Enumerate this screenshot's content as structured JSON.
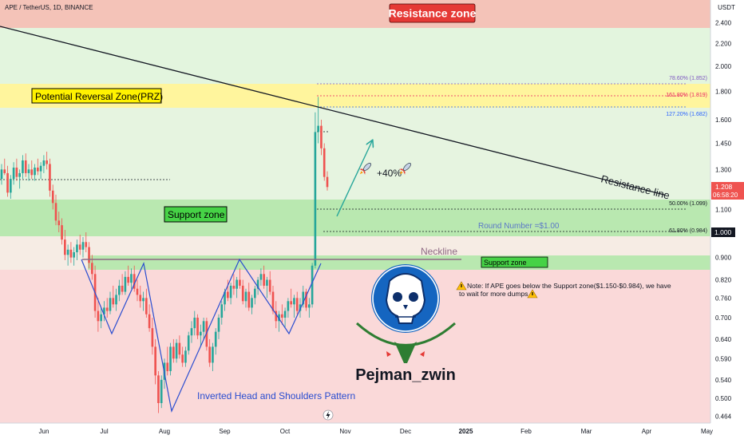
{
  "header": {
    "symbol_line": "APE / TetherUS, 1D, BINANCE"
  },
  "price_axis": {
    "unit_label": "USDT",
    "ticks": [
      "2.400",
      "2.200",
      "2.000",
      "1.800",
      "1.600",
      "1.450",
      "1.300",
      "1.100",
      "1.000",
      "0.900",
      "0.820",
      "0.760",
      "0.700",
      "0.640",
      "0.590",
      "0.540",
      "0.500",
      "0.464"
    ],
    "last_price": "1.208",
    "countdown": "06:58:20",
    "marker_price": "1.000"
  },
  "time_axis": {
    "labels": [
      "Jun",
      "Jul",
      "Aug",
      "Sep",
      "Oct",
      "Nov",
      "Dec",
      "2025",
      "Feb",
      "Mar",
      "Apr",
      "May"
    ]
  },
  "zones": {
    "resistance_label": "Resistance zone",
    "prz_label": "Potential Reversal Zone(PRZ)",
    "support_label": "Support zone",
    "support_small_label": "Support zone"
  },
  "fib_levels": [
    {
      "text": "78.60% (1.852)",
      "color": "#7e57c2"
    },
    {
      "text": "161.80% (1.819)",
      "color": "#e91e63"
    },
    {
      "text": "127.20% (1.682)",
      "color": "#2962ff"
    },
    {
      "text": "50.00% (1.099)",
      "color": "#131722"
    },
    {
      "text": "61.80% (0.984)",
      "color": "#131722"
    }
  ],
  "annotations": {
    "resistance_line": "Resistance line",
    "neckline": "Neckline",
    "round_number": "Round Number =$1.00",
    "move_label": "+40%",
    "pattern": "Inverted Head and Shoulders Pattern",
    "note_line1": "Note: If APE goes below the Support zone($1.150-$0.984), we have",
    "note_line2": "to wait for more dumps",
    "author": "Pejman_zwin"
  },
  "colors": {
    "up": "#26a69a",
    "down": "#ef5350",
    "resistance_zone": "#f4c3b8",
    "prz_zone": "#fff59d",
    "support_zone": "#b9e8b0",
    "pattern_line": "#2a4dd0",
    "neckline": "#8e6a84"
  },
  "chart_data": {
    "type": "candlestick",
    "symbol": "APE / TetherUS",
    "timeframe": "1D",
    "exchange": "BINANCE",
    "y_scale": "log",
    "ylim": [
      0.464,
      2.65
    ],
    "x_labels": [
      "Jun",
      "Jul",
      "Aug",
      "Sep",
      "Oct",
      "Nov",
      "Dec",
      "2025",
      "Feb",
      "Mar",
      "Apr",
      "May"
    ],
    "series": [
      {
        "name": "APE / TetherUS",
        "candles": [
          [
            1.25,
            1.33,
            1.22,
            1.3
          ],
          [
            1.3,
            1.36,
            1.27,
            1.28
          ],
          [
            1.28,
            1.32,
            1.16,
            1.18
          ],
          [
            1.18,
            1.27,
            1.15,
            1.25
          ],
          [
            1.25,
            1.34,
            1.22,
            1.31
          ],
          [
            1.31,
            1.36,
            1.24,
            1.26
          ],
          [
            1.26,
            1.3,
            1.2,
            1.28
          ],
          [
            1.28,
            1.38,
            1.25,
            1.35
          ],
          [
            1.35,
            1.39,
            1.26,
            1.28
          ],
          [
            1.28,
            1.33,
            1.24,
            1.3
          ],
          [
            1.3,
            1.35,
            1.25,
            1.27
          ],
          [
            1.27,
            1.33,
            1.24,
            1.31
          ],
          [
            1.31,
            1.36,
            1.27,
            1.29
          ],
          [
            1.29,
            1.34,
            1.25,
            1.32
          ],
          [
            1.32,
            1.38,
            1.28,
            1.35
          ],
          [
            1.35,
            1.4,
            1.3,
            1.33
          ],
          [
            1.33,
            1.36,
            1.16,
            1.19
          ],
          [
            1.19,
            1.22,
            1.1,
            1.13
          ],
          [
            1.13,
            1.17,
            1.03,
            1.05
          ],
          [
            1.05,
            1.09,
            1.0,
            1.03
          ],
          [
            1.03,
            1.06,
            0.95,
            0.97
          ],
          [
            0.97,
            1.01,
            0.89,
            0.91
          ],
          [
            0.91,
            0.95,
            0.87,
            0.93
          ],
          [
            0.93,
            0.96,
            0.88,
            0.9
          ],
          [
            0.9,
            0.94,
            0.87,
            0.92
          ],
          [
            0.92,
            0.97,
            0.89,
            0.95
          ],
          [
            0.95,
            0.99,
            0.91,
            0.93
          ],
          [
            0.93,
            0.98,
            0.9,
            0.96
          ],
          [
            0.96,
            1.0,
            0.92,
            0.94
          ],
          [
            0.94,
            0.96,
            0.86,
            0.88
          ],
          [
            0.88,
            0.91,
            0.82,
            0.84
          ],
          [
            0.84,
            0.87,
            0.7,
            0.72
          ],
          [
            0.72,
            0.76,
            0.66,
            0.69
          ],
          [
            0.69,
            0.73,
            0.67,
            0.71
          ],
          [
            0.71,
            0.75,
            0.69,
            0.73
          ],
          [
            0.73,
            0.76,
            0.7,
            0.72
          ],
          [
            0.72,
            0.78,
            0.71,
            0.76
          ],
          [
            0.76,
            0.8,
            0.73,
            0.74
          ],
          [
            0.74,
            0.79,
            0.72,
            0.77
          ],
          [
            0.77,
            0.82,
            0.75,
            0.8
          ],
          [
            0.8,
            0.84,
            0.77,
            0.78
          ],
          [
            0.78,
            0.85,
            0.77,
            0.83
          ],
          [
            0.83,
            0.87,
            0.8,
            0.81
          ],
          [
            0.81,
            0.86,
            0.79,
            0.84
          ],
          [
            0.84,
            0.87,
            0.78,
            0.79
          ],
          [
            0.79,
            0.82,
            0.75,
            0.77
          ],
          [
            0.77,
            0.8,
            0.73,
            0.75
          ],
          [
            0.75,
            0.78,
            0.72,
            0.76
          ],
          [
            0.76,
            0.79,
            0.7,
            0.71
          ],
          [
            0.71,
            0.74,
            0.66,
            0.67
          ],
          [
            0.67,
            0.7,
            0.6,
            0.62
          ],
          [
            0.62,
            0.64,
            0.53,
            0.55
          ],
          [
            0.55,
            0.56,
            0.47,
            0.49
          ],
          [
            0.49,
            0.55,
            0.48,
            0.54
          ],
          [
            0.54,
            0.59,
            0.52,
            0.58
          ],
          [
            0.58,
            0.62,
            0.55,
            0.56
          ],
          [
            0.56,
            0.63,
            0.55,
            0.62
          ],
          [
            0.62,
            0.64,
            0.58,
            0.59
          ],
          [
            0.59,
            0.64,
            0.58,
            0.63
          ],
          [
            0.63,
            0.65,
            0.59,
            0.6
          ],
          [
            0.6,
            0.62,
            0.57,
            0.58
          ],
          [
            0.58,
            0.62,
            0.57,
            0.61
          ],
          [
            0.61,
            0.66,
            0.6,
            0.65
          ],
          [
            0.65,
            0.69,
            0.63,
            0.67
          ],
          [
            0.67,
            0.72,
            0.65,
            0.7
          ],
          [
            0.7,
            0.71,
            0.64,
            0.65
          ],
          [
            0.65,
            0.68,
            0.62,
            0.66
          ],
          [
            0.66,
            0.7,
            0.64,
            0.69
          ],
          [
            0.69,
            0.7,
            0.61,
            0.62
          ],
          [
            0.62,
            0.64,
            0.57,
            0.58
          ],
          [
            0.58,
            0.63,
            0.56,
            0.62
          ],
          [
            0.62,
            0.67,
            0.6,
            0.66
          ],
          [
            0.66,
            0.71,
            0.64,
            0.7
          ],
          [
            0.7,
            0.75,
            0.68,
            0.74
          ],
          [
            0.74,
            0.79,
            0.72,
            0.78
          ],
          [
            0.78,
            0.82,
            0.75,
            0.76
          ],
          [
            0.76,
            0.81,
            0.74,
            0.8
          ],
          [
            0.8,
            0.84,
            0.77,
            0.79
          ],
          [
            0.79,
            0.83,
            0.76,
            0.82
          ],
          [
            0.82,
            0.86,
            0.79,
            0.8
          ],
          [
            0.8,
            0.82,
            0.74,
            0.75
          ],
          [
            0.75,
            0.79,
            0.73,
            0.78
          ],
          [
            0.78,
            0.81,
            0.72,
            0.73
          ],
          [
            0.73,
            0.77,
            0.71,
            0.76
          ],
          [
            0.76,
            0.8,
            0.74,
            0.79
          ],
          [
            0.79,
            0.83,
            0.77,
            0.82
          ],
          [
            0.82,
            0.86,
            0.8,
            0.84
          ],
          [
            0.84,
            0.87,
            0.79,
            0.8
          ],
          [
            0.8,
            0.83,
            0.76,
            0.82
          ],
          [
            0.82,
            0.85,
            0.77,
            0.78
          ],
          [
            0.78,
            0.8,
            0.71,
            0.72
          ],
          [
            0.72,
            0.75,
            0.67,
            0.69
          ],
          [
            0.69,
            0.72,
            0.66,
            0.71
          ],
          [
            0.71,
            0.74,
            0.68,
            0.7
          ],
          [
            0.7,
            0.73,
            0.67,
            0.72
          ],
          [
            0.72,
            0.76,
            0.7,
            0.75
          ],
          [
            0.75,
            0.79,
            0.73,
            0.74
          ],
          [
            0.74,
            0.77,
            0.7,
            0.76
          ],
          [
            0.76,
            0.78,
            0.71,
            0.72
          ],
          [
            0.72,
            0.76,
            0.7,
            0.74
          ],
          [
            0.74,
            0.8,
            0.73,
            0.78
          ],
          [
            0.78,
            0.79,
            0.72,
            0.73
          ],
          [
            0.73,
            0.76,
            0.7,
            0.74
          ],
          [
            0.74,
            0.88,
            0.73,
            0.87
          ],
          [
            0.87,
            1.65,
            0.86,
            1.52
          ],
          [
            1.52,
            1.76,
            1.45,
            1.56
          ],
          [
            1.56,
            1.6,
            1.38,
            1.42
          ],
          [
            1.42,
            1.45,
            1.24,
            1.26
          ],
          [
            1.26,
            1.29,
            1.19,
            1.208
          ]
        ]
      }
    ],
    "levels": [
      {
        "label": "78.60%",
        "price": 1.852
      },
      {
        "label": "161.80%",
        "price": 1.819
      },
      {
        "label": "127.20%",
        "price": 1.682
      },
      {
        "label": "50.00%",
        "price": 1.099
      },
      {
        "label": "61.80%",
        "price": 0.984
      }
    ],
    "zones": [
      {
        "name": "Resistance zone",
        "from": 2.35,
        "to": 2.65
      },
      {
        "name": "Potential Reversal Zone(PRZ)",
        "from": 1.68,
        "to": 1.86
      },
      {
        "name": "Support zone",
        "from": 0.984,
        "to": 1.15
      },
      {
        "name": "Support zone",
        "from": 0.86,
        "to": 0.9
      }
    ],
    "last_price": 1.208,
    "round_number": 1.0,
    "grid": false
  }
}
